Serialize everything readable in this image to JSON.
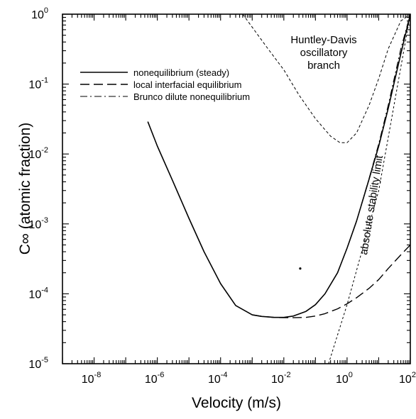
{
  "chart_data": {
    "type": "line",
    "title": "",
    "xlabel": "Velocity (m/s)",
    "ylabel": "C∞ (atomic fraction)",
    "x_scale": "log",
    "y_scale": "log",
    "xlim": [
      1e-09,
      100
    ],
    "ylim": [
      1e-05,
      1
    ],
    "grid": false,
    "legend_position": "upper-left",
    "x_ticks": [
      {
        "value": 1e-08,
        "base": "10",
        "exp": "-8"
      },
      {
        "value": 1e-06,
        "base": "10",
        "exp": "-6"
      },
      {
        "value": 0.0001,
        "base": "10",
        "exp": "-4"
      },
      {
        "value": 0.01,
        "base": "10",
        "exp": "-2"
      },
      {
        "value": 1,
        "base": "10",
        "exp": "0"
      },
      {
        "value": 100,
        "base": "10",
        "exp": "2"
      }
    ],
    "y_ticks": [
      {
        "value": 1e-05,
        "base": "10",
        "exp": "-5"
      },
      {
        "value": 0.0001,
        "base": "10",
        "exp": "-4"
      },
      {
        "value": 0.001,
        "base": "10",
        "exp": "-3"
      },
      {
        "value": 0.01,
        "base": "10",
        "exp": "-2"
      },
      {
        "value": 0.1,
        "base": "10",
        "exp": "-1"
      },
      {
        "value": 1,
        "base": "10",
        "exp": "0"
      }
    ],
    "series": [
      {
        "name": "nonequilibrium (steady)",
        "style": "solid",
        "color": "#000000",
        "x": [
          5e-07,
          1e-06,
          3e-06,
          1e-05,
          3e-05,
          0.0001,
          0.0003,
          0.001,
          0.002,
          0.005,
          0.01,
          0.02,
          0.05,
          0.1,
          0.2,
          0.5,
          1,
          2,
          5,
          10,
          20,
          50,
          100
        ],
        "y": [
          0.029,
          0.013,
          0.0042,
          0.0012,
          0.0004,
          0.00014,
          6.8e-05,
          5e-05,
          4.75e-05,
          4.6e-05,
          4.6e-05,
          4.8e-05,
          5.6e-05,
          7e-05,
          0.0001,
          0.0002,
          0.00045,
          0.0011,
          0.0044,
          0.013,
          0.045,
          0.27,
          1.0
        ]
      },
      {
        "name": "local interfacial equilibrium",
        "style": "dashed",
        "color": "#000000",
        "x": [
          0.001,
          0.002,
          0.005,
          0.01,
          0.02,
          0.05,
          0.1,
          0.2,
          0.5,
          1,
          2,
          5,
          10,
          20,
          50,
          100
        ],
        "y": [
          5e-05,
          4.75e-05,
          4.6e-05,
          4.55e-05,
          4.55e-05,
          4.6e-05,
          4.8e-05,
          5.2e-05,
          6.1e-05,
          7.2e-05,
          8.8e-05,
          0.00012,
          0.00016,
          0.00023,
          0.00036,
          0.0005
        ]
      },
      {
        "name": "Brunco dilute nonequilibrium",
        "style": "dashdot",
        "color": "#000000",
        "x": [
          0.5,
          1,
          2,
          5,
          10,
          20,
          50,
          100
        ],
        "y": [
          0.0002,
          0.00045,
          0.0011,
          0.0045,
          0.014,
          0.05,
          0.32,
          1.0
        ]
      },
      {
        "name": "Huntley-Davis oscillatory branch",
        "style": "shortdash",
        "color": "#000000",
        "x": [
          0.0005,
          0.001,
          0.003,
          0.01,
          0.03,
          0.1,
          0.3,
          0.6,
          1,
          2,
          5,
          10,
          20,
          50,
          100
        ],
        "y": [
          1.0,
          0.65,
          0.33,
          0.16,
          0.07,
          0.032,
          0.018,
          0.0145,
          0.0145,
          0.02,
          0.05,
          0.12,
          0.32,
          0.8,
          1.0
        ]
      },
      {
        "name": "absolute stability limit",
        "style": "finedash",
        "color": "#000000",
        "x": [
          0.26,
          1,
          10,
          100
        ],
        "y": [
          1e-05,
          7e-05,
          0.003,
          1.0
        ]
      }
    ],
    "legend": [
      {
        "label": "nonequilibrium (steady)",
        "style": "solid"
      },
      {
        "label": "local interfacial equilibrium",
        "style": "dashed"
      },
      {
        "label": "Brunco dilute nonequilibrium",
        "style": "dashdot"
      }
    ],
    "annotations": [
      {
        "id": "oscillatory",
        "lines": [
          "Huntley-Davis",
          "oscillatory",
          "branch"
        ]
      },
      {
        "id": "stability",
        "text": "absolute stability limit"
      }
    ],
    "marker_point": {
      "x": 0.033,
      "y": 0.00023
    }
  }
}
